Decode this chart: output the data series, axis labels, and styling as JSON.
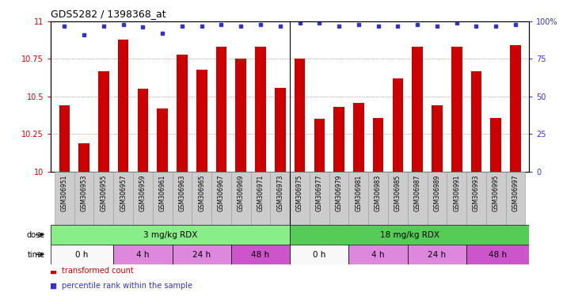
{
  "title": "GDS5282 / 1398368_at",
  "samples": [
    "GSM306951",
    "GSM306953",
    "GSM306955",
    "GSM306957",
    "GSM306959",
    "GSM306961",
    "GSM306963",
    "GSM306965",
    "GSM306967",
    "GSM306969",
    "GSM306971",
    "GSM306973",
    "GSM306975",
    "GSM306977",
    "GSM306979",
    "GSM306981",
    "GSM306983",
    "GSM306985",
    "GSM306987",
    "GSM306989",
    "GSM306991",
    "GSM306993",
    "GSM306995",
    "GSM306997"
  ],
  "bar_values": [
    10.44,
    10.19,
    10.67,
    10.88,
    10.55,
    10.42,
    10.78,
    10.68,
    10.83,
    10.75,
    10.83,
    10.56,
    10.75,
    10.35,
    10.43,
    10.46,
    10.36,
    10.62,
    10.83,
    10.44,
    10.83,
    10.67,
    10.36,
    10.84
  ],
  "percentile_values": [
    97,
    91,
    97,
    98,
    96,
    92,
    97,
    97,
    98,
    97,
    98,
    97,
    99,
    99,
    97,
    98,
    97,
    97,
    98,
    97,
    99,
    97,
    97,
    98
  ],
  "bar_color": "#cc0000",
  "dot_color": "#3333cc",
  "ylim": [
    10,
    11
  ],
  "yticks": [
    10,
    10.25,
    10.5,
    10.75,
    11
  ],
  "y2lim": [
    0,
    100
  ],
  "y2ticks": [
    0,
    25,
    50,
    75,
    100
  ],
  "y2labels": [
    "0",
    "25",
    "50",
    "75",
    "100%"
  ],
  "gridcolor": "#888888",
  "dose_groups": [
    {
      "label": "3 mg/kg RDX",
      "start": 0,
      "end": 12,
      "color": "#88ee88"
    },
    {
      "label": "18 mg/kg RDX",
      "start": 12,
      "end": 24,
      "color": "#55cc55"
    }
  ],
  "time_boundaries": [
    {
      "label": "0 h",
      "start": 0,
      "end": 3,
      "color": "#f8f8f8"
    },
    {
      "label": "4 h",
      "start": 3,
      "end": 6,
      "color": "#dd88dd"
    },
    {
      "label": "24 h",
      "start": 6,
      "end": 9,
      "color": "#dd88dd"
    },
    {
      "label": "48 h",
      "start": 9,
      "end": 12,
      "color": "#cc55cc"
    },
    {
      "label": "0 h",
      "start": 12,
      "end": 15,
      "color": "#f8f8f8"
    },
    {
      "label": "4 h",
      "start": 15,
      "end": 18,
      "color": "#dd88dd"
    },
    {
      "label": "24 h",
      "start": 18,
      "end": 21,
      "color": "#dd88dd"
    },
    {
      "label": "48 h",
      "start": 21,
      "end": 24,
      "color": "#cc55cc"
    }
  ],
  "legend_items": [
    {
      "label": "transformed count",
      "color": "#cc0000",
      "marker": "s"
    },
    {
      "label": "percentile rank within the sample",
      "color": "#3333cc",
      "marker": "s"
    }
  ],
  "fig_bg": "#ffffff",
  "plot_bg": "#ffffff",
  "xtick_bg": "#cccccc"
}
